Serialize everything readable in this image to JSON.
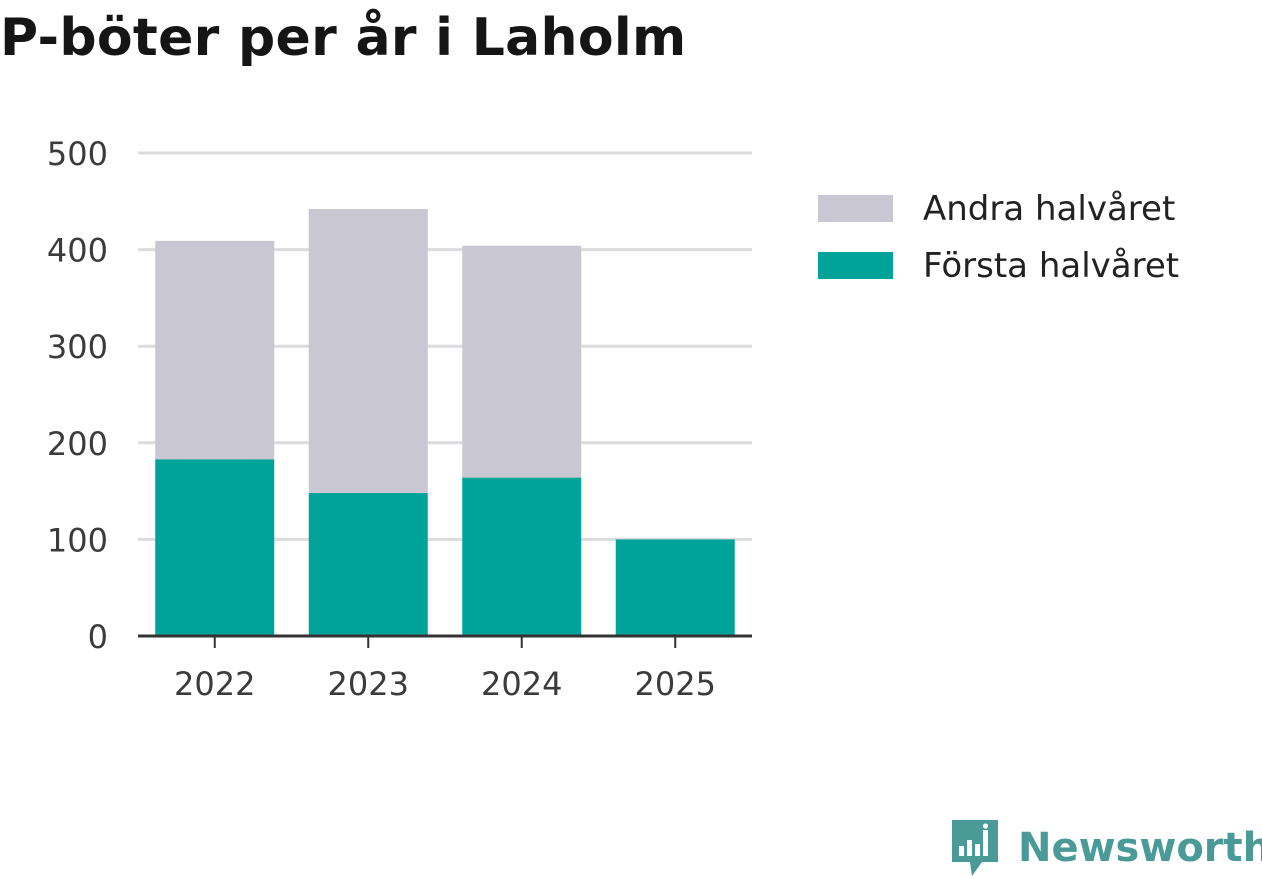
{
  "chart_data": {
    "type": "bar",
    "stacked": true,
    "title": "P-böter per år i Laholm",
    "xlabel": "",
    "ylabel": "",
    "categories": [
      "2022",
      "2023",
      "2024",
      "2025"
    ],
    "series": [
      {
        "name": "Första halvåret",
        "color": "#00a39a",
        "values": [
          183,
          148,
          164,
          100
        ]
      },
      {
        "name": "Andra halvåret",
        "color": "#c8c7d2",
        "values": [
          226,
          294,
          240,
          0
        ]
      }
    ],
    "ylim": [
      0,
      500
    ],
    "yticks": [
      0,
      100,
      200,
      300,
      400,
      500
    ],
    "grid": true,
    "legend": {
      "position": "right",
      "items": [
        {
          "label": "Andra halvåret",
          "color": "#c8c7d2"
        },
        {
          "label": "Första halvåret",
          "color": "#00a39a"
        }
      ]
    }
  },
  "branding": {
    "logo_text": "Newsworthy",
    "logo_color": "#4a9a97",
    "logo_icon": "newsworthy-bar-chart-icon"
  }
}
